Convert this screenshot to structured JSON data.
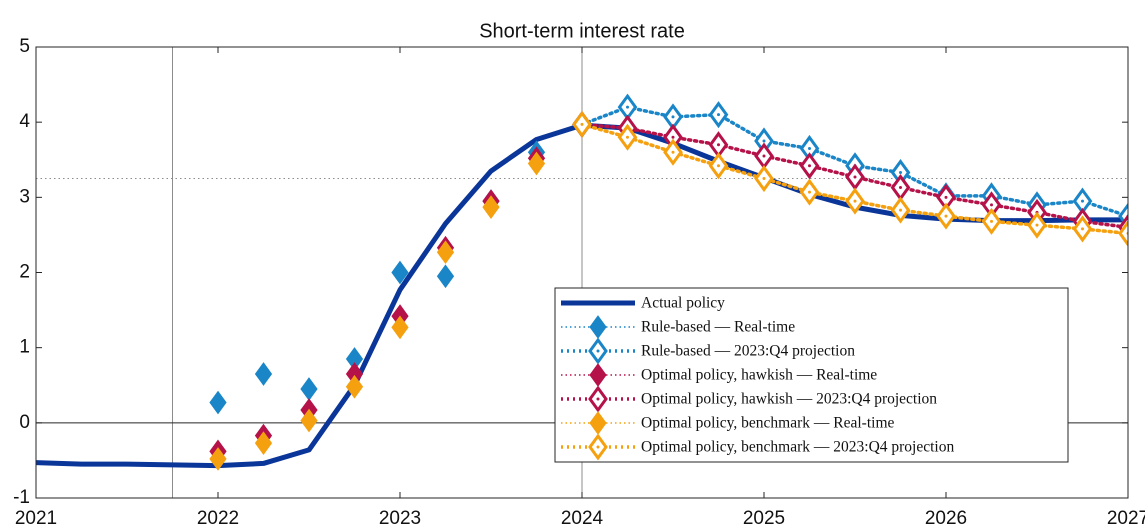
{
  "chart_data": {
    "type": "line",
    "title": "Short-term interest rate",
    "xlim": [
      2021,
      2027
    ],
    "xticks": [
      2021,
      2022,
      2023,
      2024,
      2025,
      2026,
      2027
    ],
    "ylim": [
      -1,
      5
    ],
    "yticks": [
      -1,
      0,
      1,
      2,
      3,
      4,
      5
    ],
    "reference_lines": {
      "x": [
        2021.75,
        2024
      ],
      "y": [
        0,
        3.25
      ]
    },
    "legend": "lower-right",
    "series": [
      {
        "name": "Actual policy",
        "color": "#0a3699",
        "style": "solid",
        "marker": "none",
        "connect": true,
        "x": [
          2021,
          2021.25,
          2021.5,
          2021.75,
          2022,
          2022.25,
          2022.5,
          2022.75,
          2023,
          2023.25,
          2023.5,
          2023.75,
          2024,
          2024.25,
          2024.5,
          2024.75,
          2025,
          2025.25,
          2025.5,
          2025.75,
          2026,
          2026.25,
          2026.5,
          2026.75,
          2027
        ],
        "values": [
          -0.53,
          -0.55,
          -0.55,
          -0.56,
          -0.57,
          -0.54,
          -0.36,
          0.5,
          1.77,
          2.65,
          3.35,
          3.77,
          3.96,
          3.92,
          3.72,
          3.48,
          3.26,
          3.04,
          2.87,
          2.76,
          2.71,
          2.69,
          2.69,
          2.7,
          2.7
        ]
      },
      {
        "name": "Rule-based — Real-time",
        "color": "#1a86c8",
        "style": "dotted-thin",
        "marker": "filled-diamond",
        "connect": false,
        "x": [
          2022,
          2022.25,
          2022.5,
          2022.75,
          2023,
          2023.25,
          2023.5,
          2023.75
        ],
        "values": [
          0.27,
          0.65,
          0.45,
          0.85,
          2.0,
          1.95,
          2.95,
          3.6
        ]
      },
      {
        "name": "Rule-based — 2023:Q4 projection",
        "color": "#1a86c8",
        "style": "dotted",
        "marker": "open-diamond",
        "connect": true,
        "x": [
          2024,
          2024.25,
          2024.5,
          2024.75,
          2025,
          2025.25,
          2025.5,
          2025.75,
          2026,
          2026.25,
          2026.5,
          2026.75,
          2027
        ],
        "values": [
          3.97,
          4.2,
          4.07,
          4.1,
          3.75,
          3.65,
          3.42,
          3.33,
          3.02,
          3.02,
          2.9,
          2.95,
          2.75
        ]
      },
      {
        "name": "Optimal policy, hawkish — Real-time",
        "color": "#b5124a",
        "style": "dotted-thin",
        "marker": "filled-diamond",
        "connect": false,
        "x": [
          2022,
          2022.25,
          2022.5,
          2022.75,
          2023,
          2023.25,
          2023.5,
          2023.75
        ],
        "values": [
          -0.38,
          -0.17,
          0.17,
          0.65,
          1.42,
          2.33,
          2.95,
          3.52
        ]
      },
      {
        "name": "Optimal policy, hawkish — 2023:Q4 projection",
        "color": "#b5124a",
        "style": "dotted",
        "marker": "open-diamond",
        "connect": true,
        "x": [
          2024,
          2024.25,
          2024.5,
          2024.75,
          2025,
          2025.25,
          2025.5,
          2025.75,
          2026,
          2026.25,
          2026.5,
          2026.75,
          2027
        ],
        "values": [
          3.97,
          3.92,
          3.8,
          3.7,
          3.55,
          3.42,
          3.27,
          3.13,
          3.0,
          2.9,
          2.8,
          2.68,
          2.6
        ]
      },
      {
        "name": "Optimal policy, benchmark — Real-time",
        "color": "#f5a00f",
        "style": "dotted-thin",
        "marker": "filled-diamond",
        "connect": false,
        "x": [
          2022,
          2022.25,
          2022.5,
          2022.75,
          2023,
          2023.25,
          2023.5,
          2023.75
        ],
        "values": [
          -0.48,
          -0.27,
          0.03,
          0.48,
          1.27,
          2.27,
          2.87,
          3.45
        ]
      },
      {
        "name": "Optimal policy, benchmark — 2023:Q4 projection",
        "color": "#f5a00f",
        "style": "dotted",
        "marker": "open-diamond",
        "connect": true,
        "x": [
          2024,
          2024.25,
          2024.5,
          2024.75,
          2025,
          2025.25,
          2025.5,
          2025.75,
          2026,
          2026.25,
          2026.5,
          2026.75,
          2027
        ],
        "values": [
          3.97,
          3.8,
          3.6,
          3.42,
          3.25,
          3.07,
          2.95,
          2.83,
          2.75,
          2.68,
          2.63,
          2.58,
          2.52
        ]
      }
    ]
  }
}
